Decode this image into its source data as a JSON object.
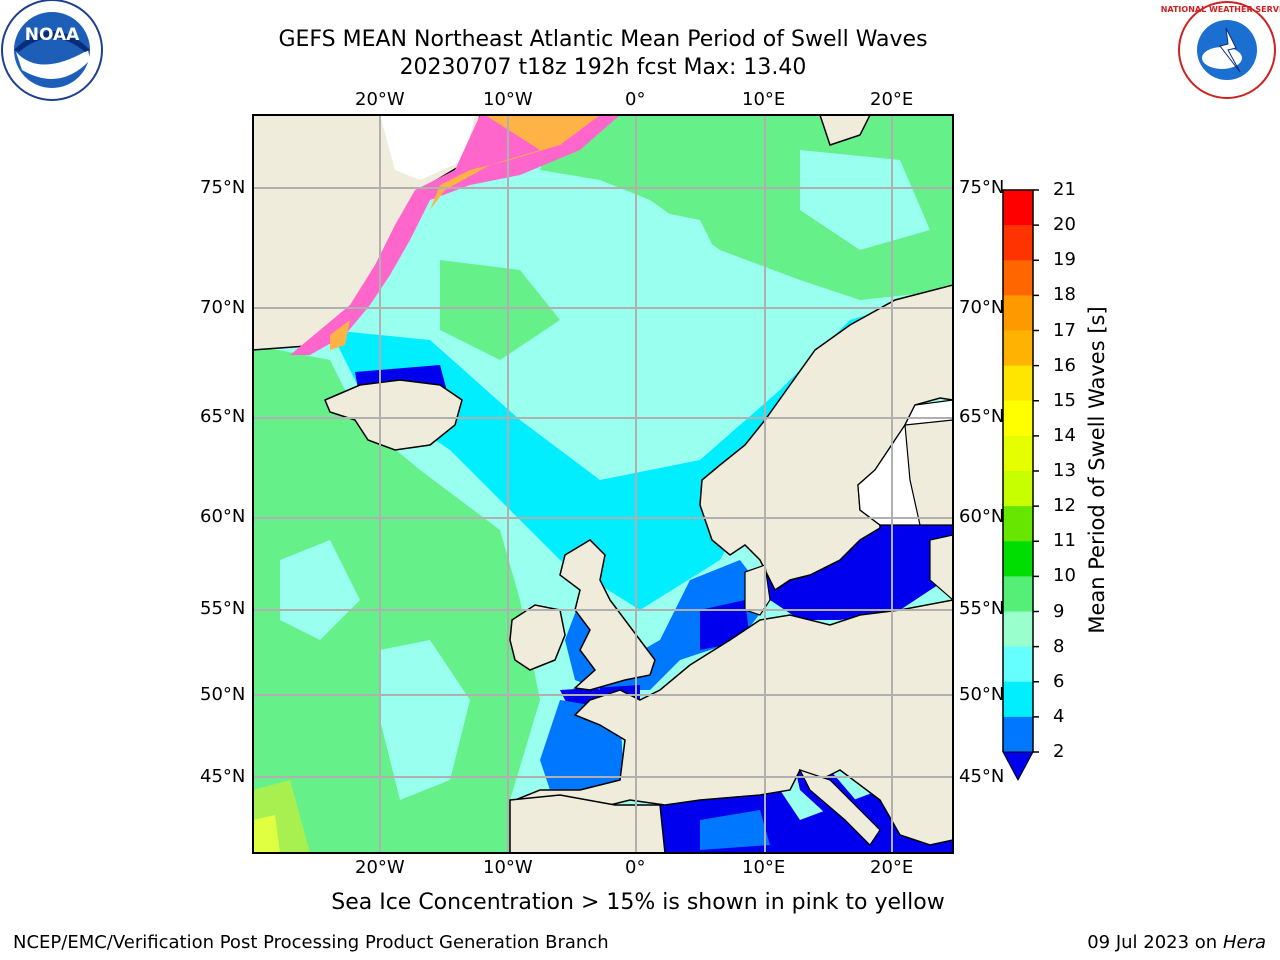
{
  "header": {
    "title_line1": "GEFS MEAN Northeast Atlantic Mean Period of Swell Waves",
    "title_line2": "20230707 t18z 192h fcst   Max: 13.40"
  },
  "map": {
    "lon_labels": [
      "20°W",
      "10°W",
      "0°",
      "10°E",
      "20°E"
    ],
    "lat_labels": [
      "75°N",
      "70°N",
      "65°N",
      "60°N",
      "55°N",
      "50°N",
      "45°N"
    ],
    "colors": {
      "land": "#efecdc",
      "ice_pink": "#ff66cc",
      "ice_orange": "#ffb347",
      "grid": "#b0b0b0"
    }
  },
  "colorbar": {
    "label": "Mean Period of Swell Waves [s]",
    "ticks": [
      "21",
      "20",
      "19",
      "18",
      "17",
      "16",
      "15",
      "14",
      "13",
      "12",
      "11",
      "10",
      "9",
      "8",
      "6",
      "4",
      "2"
    ],
    "colors": [
      "#ff0000",
      "#ff3300",
      "#ff6600",
      "#ff9900",
      "#ffb300",
      "#ffe600",
      "#ffff00",
      "#e6ff00",
      "#c8ff00",
      "#66e600",
      "#00dd00",
      "#55ee77",
      "#99ffcc",
      "#66ffff",
      "#00eeff",
      "#0077ff"
    ],
    "extend_color": "#0000ee"
  },
  "note": "Sea Ice Concentration > 15% is shown in pink to yellow",
  "footer": {
    "left": "NCEP/EMC/Verification Post Processing Product Generation Branch",
    "right_date": "09 Jul 2023 on ",
    "right_host": "Hera"
  },
  "logos": {
    "left": "NOAA",
    "right": "NATIONAL WEATHER SERVICE"
  }
}
